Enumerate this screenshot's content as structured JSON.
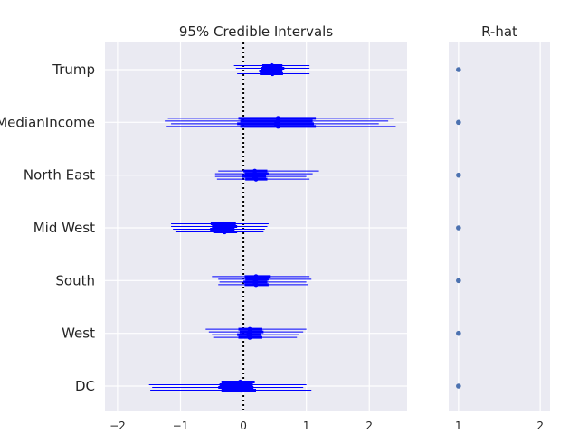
{
  "chart_data": [
    {
      "type": "forest",
      "title": "95% Credible Intervals",
      "xlabel": "",
      "ylabel": "",
      "xlim": [
        -2.2,
        2.6
      ],
      "xticks": [
        -2,
        -1,
        0,
        1,
        2
      ],
      "xtick_labels": [
        "−2",
        "−1",
        "0",
        "1",
        "2"
      ],
      "reference_line": 0,
      "grid": true,
      "color": "#0000ff",
      "variables": [
        {
          "name": "Trump",
          "chains": [
            {
              "mean": 0.45,
              "q25": 0.3,
              "q75": 0.62,
              "low": -0.15,
              "high": 1.05
            },
            {
              "mean": 0.45,
              "q25": 0.28,
              "q75": 0.65,
              "low": -0.12,
              "high": 1.05
            },
            {
              "mean": 0.44,
              "q25": 0.25,
              "q75": 0.62,
              "low": -0.16,
              "high": 1.03
            },
            {
              "mean": 0.46,
              "q25": 0.26,
              "q75": 0.63,
              "low": -0.1,
              "high": 1.05
            }
          ]
        },
        {
          "name": "MedianIncome",
          "chains": [
            {
              "mean": 0.55,
              "q25": -0.08,
              "q75": 1.15,
              "low": -1.2,
              "high": 2.38
            },
            {
              "mean": 0.55,
              "q25": -0.05,
              "q75": 1.1,
              "low": -1.25,
              "high": 2.3
            },
            {
              "mean": 0.52,
              "q25": -0.1,
              "q75": 1.12,
              "low": -1.15,
              "high": 2.15
            },
            {
              "mean": 0.55,
              "q25": -0.05,
              "q75": 1.15,
              "low": -1.22,
              "high": 2.42
            }
          ]
        },
        {
          "name": "North East",
          "chains": [
            {
              "mean": 0.18,
              "q25": 0.0,
              "q75": 0.38,
              "low": -0.4,
              "high": 1.2
            },
            {
              "mean": 0.18,
              "q25": 0.02,
              "q75": 0.4,
              "low": -0.45,
              "high": 1.1
            },
            {
              "mean": 0.16,
              "q25": -0.02,
              "q75": 0.36,
              "low": -0.45,
              "high": 1.0
            },
            {
              "mean": 0.2,
              "q25": 0.03,
              "q75": 0.38,
              "low": -0.42,
              "high": 1.05
            }
          ]
        },
        {
          "name": "Mid West",
          "chains": [
            {
              "mean": -0.32,
              "q25": -0.52,
              "q75": -0.12,
              "low": -1.15,
              "high": 0.4
            },
            {
              "mean": -0.3,
              "q25": -0.5,
              "q75": -0.1,
              "low": -1.15,
              "high": 0.38
            },
            {
              "mean": -0.33,
              "q25": -0.53,
              "q75": -0.14,
              "low": -1.12,
              "high": 0.34
            },
            {
              "mean": -0.3,
              "q25": -0.48,
              "q75": -0.1,
              "low": -1.08,
              "high": 0.32
            }
          ]
        },
        {
          "name": "South",
          "chains": [
            {
              "mean": 0.2,
              "q25": 0.02,
              "q75": 0.42,
              "low": -0.5,
              "high": 1.05
            },
            {
              "mean": 0.2,
              "q25": 0.03,
              "q75": 0.4,
              "low": -0.4,
              "high": 1.08
            },
            {
              "mean": 0.18,
              "q25": 0.0,
              "q75": 0.38,
              "low": -0.38,
              "high": 1.0
            },
            {
              "mean": 0.2,
              "q25": 0.02,
              "q75": 0.4,
              "low": -0.4,
              "high": 1.02
            }
          ]
        },
        {
          "name": "West",
          "chains": [
            {
              "mean": 0.1,
              "q25": -0.08,
              "q75": 0.3,
              "low": -0.6,
              "high": 1.0
            },
            {
              "mean": 0.1,
              "q25": -0.06,
              "q75": 0.32,
              "low": -0.55,
              "high": 0.95
            },
            {
              "mean": 0.08,
              "q25": -0.1,
              "q75": 0.28,
              "low": -0.5,
              "high": 0.88
            },
            {
              "mean": 0.1,
              "q25": -0.08,
              "q75": 0.3,
              "low": -0.48,
              "high": 0.85
            }
          ]
        },
        {
          "name": "DC",
          "chains": [
            {
              "mean": -0.05,
              "q25": -0.35,
              "q75": 0.18,
              "low": -1.95,
              "high": 1.05
            },
            {
              "mean": -0.05,
              "q25": -0.38,
              "q75": 0.15,
              "low": -1.5,
              "high": 1.0
            },
            {
              "mean": -0.06,
              "q25": -0.4,
              "q75": 0.16,
              "low": -1.45,
              "high": 0.95
            },
            {
              "mean": -0.04,
              "q25": -0.35,
              "q75": 0.2,
              "low": -1.48,
              "high": 1.08
            }
          ]
        }
      ]
    },
    {
      "type": "scatter",
      "title": "R-hat",
      "xlabel": "",
      "ylabel": "",
      "xlim": [
        0.88,
        2.12
      ],
      "xticks": [
        1,
        2
      ],
      "xtick_labels": [
        "1",
        "2"
      ],
      "grid": true,
      "color": "#4c72b0",
      "values": [
        1.0,
        1.0,
        1.0,
        1.0,
        1.0,
        1.0,
        1.0
      ]
    }
  ]
}
